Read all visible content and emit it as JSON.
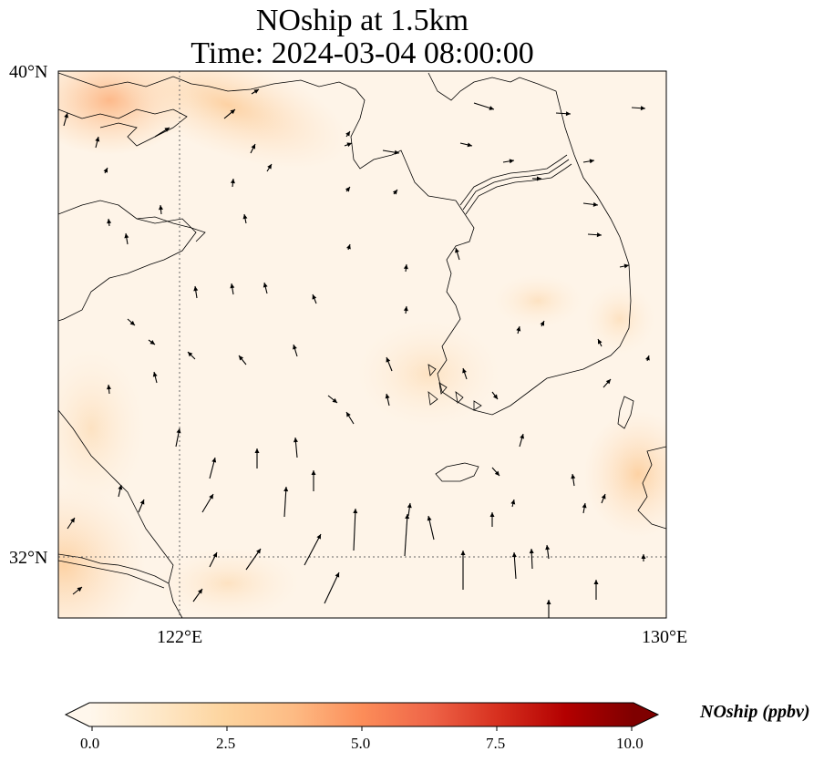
{
  "title": {
    "line1": "NOship at 1.5km",
    "line2": "Time: 2024-03-04 08:00:00"
  },
  "map": {
    "extent": {
      "lon_min": 119.6,
      "lon_max": 130.0,
      "lat_min": 31.0,
      "lat_max": 40.0
    },
    "gridlines": {
      "lons": [
        122
      ],
      "lats": [
        32
      ],
      "style": "dotted"
    },
    "lat_labels": [
      "40°N",
      "32°N"
    ],
    "lon_labels": [
      "122°E",
      "130°E"
    ],
    "features": [
      "coastline",
      "border",
      "wind-vectors",
      "concentration-field"
    ]
  },
  "colorbar": {
    "label": "NOship (ppbv)",
    "ticks": [
      "0.0",
      "2.5",
      "5.0",
      "7.5",
      "10.0"
    ],
    "vmin": 0,
    "vmax": 10,
    "extend": "both",
    "colormap": "OrRd",
    "colors": [
      "#fff7ec",
      "#fee8c8",
      "#fdd49e",
      "#fdbb84",
      "#fc8d59",
      "#ef6548",
      "#d7301f",
      "#b30000",
      "#7f0000"
    ]
  }
}
